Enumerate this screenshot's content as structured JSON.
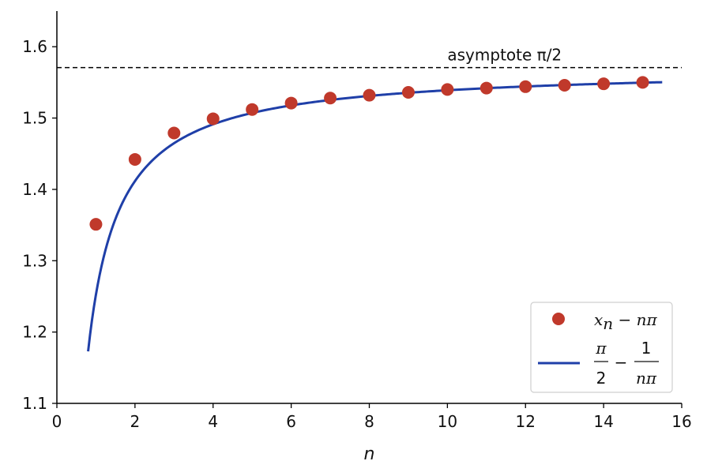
{
  "chart_data": {
    "type": "scatter",
    "xlabel": "n",
    "ylabel": "",
    "xlim": [
      0,
      16
    ],
    "ylim": [
      1.1,
      1.65
    ],
    "x_ticks": [
      "0",
      "2",
      "4",
      "6",
      "8",
      "10",
      "12",
      "14",
      "16"
    ],
    "y_ticks": [
      "1.1",
      "1.2",
      "1.3",
      "1.4",
      "1.5",
      "1.6"
    ],
    "grid": false,
    "legend_position": "lower-right",
    "asymptote": {
      "value": 1.5708,
      "label": "asymptote π/2",
      "style": "dashed"
    },
    "series": [
      {
        "name": "x_n − nπ",
        "type": "scatter",
        "color": "#c0392b",
        "x": [
          1,
          2,
          3,
          4,
          5,
          6,
          7,
          8,
          9,
          10,
          11,
          12,
          13,
          14,
          15
        ],
        "y": [
          1.351,
          1.442,
          1.479,
          1.499,
          1.512,
          1.521,
          1.528,
          1.532,
          1.536,
          1.54,
          1.542,
          1.544,
          1.546,
          1.548,
          1.55
        ]
      },
      {
        "name": "π/2 − 1/(nπ)",
        "type": "line",
        "color": "#1f3fa8",
        "x_range": [
          0.8,
          15.5
        ],
        "formula": "pi/2 - 1/(n*pi)"
      }
    ]
  },
  "legend": {
    "entry1": {
      "x": "x",
      "sub": "n",
      "rest": " − nπ"
    },
    "entry2": {
      "num1": "π",
      "den1": "2",
      "minus": "−",
      "num2": "1",
      "den2": "nπ"
    }
  }
}
